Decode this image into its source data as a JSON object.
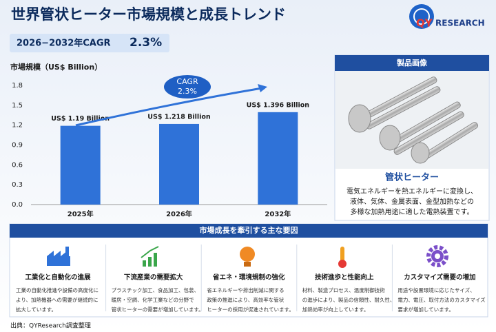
{
  "header": {
    "title": "世界管状ヒーター市場規模と成長トレンド",
    "logo_qy": "QY",
    "logo_rest": "RESEARCH",
    "cagr_label": "2026−2032年CAGR",
    "cagr_value": "2.3%"
  },
  "chart_data": {
    "type": "bar",
    "y_label": "市場規模（US$ Billion）",
    "categories": [
      "2025年",
      "2026年",
      "2032年"
    ],
    "values": [
      1.19,
      1.218,
      1.396
    ],
    "value_labels": [
      "US$ 1.19 Billion",
      "US$ 1.218 Billion",
      "US$ 1.396 Billion"
    ],
    "color": "#2f72d8",
    "ylim": [
      0,
      1.8
    ],
    "yticks": [
      {
        "value": 0,
        "label": "0.0"
      },
      0.3,
      0.6,
      0.9,
      1.2,
      1.5,
      1.8
    ],
    "grid": false,
    "annotation": {
      "title": "CAGR",
      "value": "2.3%"
    }
  },
  "product": {
    "header": "製品画像",
    "name": "管状ヒーター",
    "description": [
      "電気エネルギーを熱エネルギーに変換し、",
      "液体、気体、金属表面、金型加熱などの",
      "多様な加熱用途に適した電熱装置です。"
    ]
  },
  "factors": {
    "header": "市場成長を牽引する主な要因",
    "items": [
      {
        "title": "工業化と自動化の進展",
        "description": [
          "工業の自動化推進や設備の高度化に",
          "より、加熱機器への需要が継続的に",
          "拡大しています。"
        ]
      },
      {
        "title": "下流産業の需要拡大",
        "description": [
          "プラスチック加工、食品加工、包装、",
          "暖房・空調、化学工業などの分野で",
          "管状ヒーターの需要が増加しています。"
        ]
      },
      {
        "title": "省エネ・環境規制の強化",
        "description": [
          "省エネルギーや排出削減に関する",
          "政策の推進により、高効率な管状",
          "ヒーターの採用が促進されています。"
        ]
      },
      {
        "title": "技術進歩と性能向上",
        "description": [
          "材料、製造プロセス、温度制御技術",
          "の進歩により、製品の信頼性、耐久性、",
          "加熱効率が向上しています。"
        ]
      },
      {
        "title": "カスタマイズ需要の増加",
        "description": [
          "用途や設置環境に応じたサイズ、",
          "電力、電圧、取付方法のカスタマイズ",
          "要求が増加しています。"
        ]
      }
    ]
  },
  "source": "出典：QYResearch調査整理"
}
